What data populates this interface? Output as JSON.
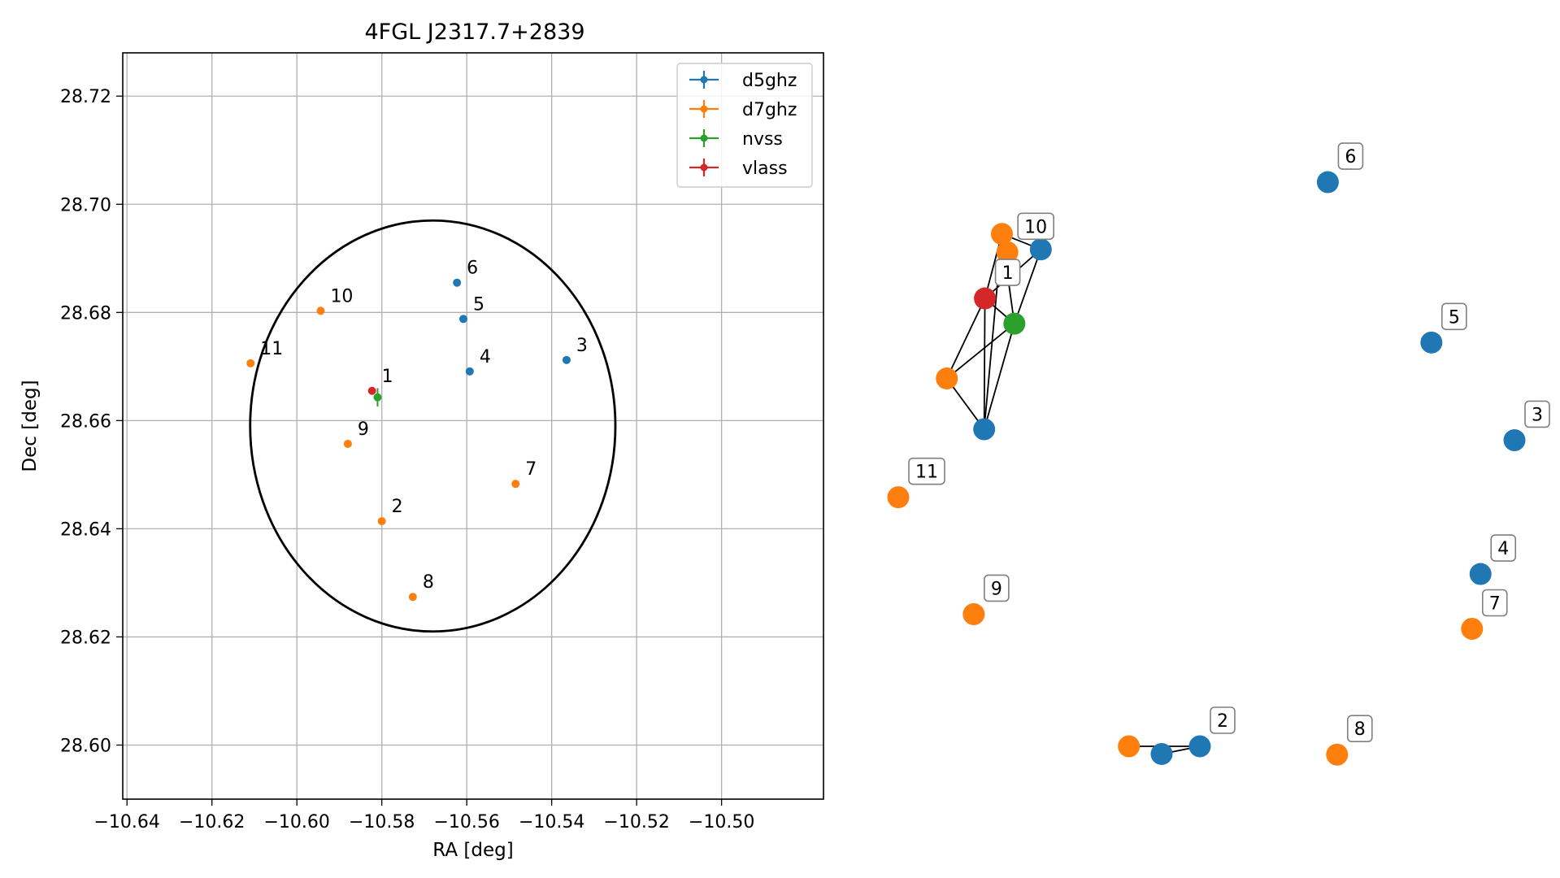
{
  "chart_data": [
    {
      "type": "scatter",
      "title": "4FGL J2317.7+2839",
      "xlabel": "RA [deg]",
      "ylabel": "Dec [deg]",
      "xlim": [
        -10.641,
        -10.476
      ],
      "ylim": [
        28.59,
        28.728
      ],
      "xticks": [
        -10.64,
        -10.62,
        -10.6,
        -10.58,
        -10.56,
        -10.54,
        -10.52,
        -10.5
      ],
      "xtick_labels": [
        "−10.64",
        "−10.62",
        "−10.60",
        "−10.58",
        "−10.56",
        "−10.54",
        "−10.52",
        "−10.50"
      ],
      "yticks": [
        28.6,
        28.62,
        28.64,
        28.66,
        28.68,
        28.7,
        28.72
      ],
      "ytick_labels": [
        "28.60",
        "28.62",
        "28.64",
        "28.66",
        "28.68",
        "28.70",
        "28.72"
      ],
      "grid": true,
      "legend_position": "top-right",
      "series": [
        {
          "name": "d5ghz",
          "color": "#1f77b4",
          "points": [
            {
              "label": "3",
              "x": -10.5365,
              "y": 28.6712
            },
            {
              "label": "4",
              "x": -10.5593,
              "y": 28.6691
            },
            {
              "label": "5",
              "x": -10.5608,
              "y": 28.6788
            },
            {
              "label": "6",
              "x": -10.5623,
              "y": 28.6855
            }
          ]
        },
        {
          "name": "d7ghz",
          "color": "#ff7f0e",
          "points": [
            {
              "label": "2",
              "x": -10.58,
              "y": 28.6414
            },
            {
              "label": "7",
              "x": -10.5485,
              "y": 28.6483
            },
            {
              "label": "8",
              "x": -10.5727,
              "y": 28.6274
            },
            {
              "label": "9",
              "x": -10.588,
              "y": 28.6557
            },
            {
              "label": "10",
              "x": -10.5944,
              "y": 28.6803
            },
            {
              "label": "11",
              "x": -10.6109,
              "y": 28.6706
            }
          ]
        },
        {
          "name": "nvss",
          "color": "#2ca02c",
          "points": [
            {
              "label": "",
              "x": -10.581,
              "y": 28.6643,
              "xerr": 0.0005,
              "yerr": 0.0017
            }
          ]
        },
        {
          "name": "vlass",
          "color": "#d62728",
          "points": [
            {
              "label": "1",
              "x": -10.5823,
              "y": 28.6655
            }
          ]
        }
      ],
      "ellipse": {
        "center_x": -10.568,
        "center_y": 28.659,
        "semi_x": 0.043,
        "semi_y": 0.038
      }
    },
    {
      "type": "scatter",
      "subtype": "network-graph",
      "nodes": [
        {
          "id": "vlass",
          "label": "1",
          "color": "#d62728",
          "x": 0.1406,
          "y": 0.7278
        },
        {
          "id": "nvss",
          "label": "",
          "color": "#2ca02c",
          "x": 0.1884,
          "y": 0.6868
        },
        {
          "id": "o1",
          "label": "",
          "color": "#ff7f0e",
          "x": 0.1682,
          "y": 0.8326
        },
        {
          "id": "b1",
          "label": "",
          "color": "#1f77b4",
          "x": 0.2313,
          "y": 0.8074
        },
        {
          "id": "o2",
          "label": "",
          "color": "#ff7f0e",
          "x": 0.0788,
          "y": 0.5977
        },
        {
          "id": "b2",
          "label": "",
          "color": "#1f77b4",
          "x": 0.1394,
          "y": 0.5152
        },
        {
          "id": "6",
          "label": "6",
          "color": "#1f77b4",
          "x": 0.6971,
          "y": 0.9167
        },
        {
          "id": "5",
          "label": "5",
          "color": "#1f77b4",
          "x": 0.8652,
          "y": 0.6561
        },
        {
          "id": "3",
          "label": "3",
          "color": "#1f77b4",
          "x": 1.0,
          "y": 0.4974
        },
        {
          "id": "4",
          "label": "4",
          "color": "#1f77b4",
          "x": 0.9449,
          "y": 0.28
        },
        {
          "id": "10",
          "label": "10",
          "color": "#ff7f0e",
          "x": 0.177,
          "y": 0.8028
        },
        {
          "id": "11",
          "label": "11",
          "color": "#ff7f0e",
          "x": 0.0,
          "y": 0.4047
        },
        {
          "id": "9",
          "label": "9",
          "color": "#ff7f0e",
          "x": 0.1225,
          "y": 0.2147
        },
        {
          "id": "7",
          "label": "7",
          "color": "#ff7f0e",
          "x": 0.9311,
          "y": 0.1909
        },
        {
          "id": "o3",
          "label": "",
          "color": "#ff7f0e",
          "x": 0.3742,
          "y": 0.0
        },
        {
          "id": "b3",
          "label": "",
          "color": "#1f77b4",
          "x": 0.4274,
          "y": -0.0125
        },
        {
          "id": "2",
          "label": "2",
          "color": "#1f77b4",
          "x": 0.4894,
          "y": 0.0
        },
        {
          "id": "8",
          "label": "8",
          "color": "#ff7f0e",
          "x": 0.7121,
          "y": -0.0135
        }
      ],
      "edges": [
        [
          "vlass",
          "nvss"
        ],
        [
          "vlass",
          "o1"
        ],
        [
          "vlass",
          "b1"
        ],
        [
          "vlass",
          "o2"
        ],
        [
          "vlass",
          "b2"
        ],
        [
          "nvss",
          "o1"
        ],
        [
          "nvss",
          "b1"
        ],
        [
          "nvss",
          "o2"
        ],
        [
          "nvss",
          "b2"
        ],
        [
          "o1",
          "b1"
        ],
        [
          "o1",
          "b2"
        ],
        [
          "o2",
          "b2"
        ],
        [
          "o3",
          "2"
        ],
        [
          "b3",
          "2"
        ]
      ]
    }
  ]
}
